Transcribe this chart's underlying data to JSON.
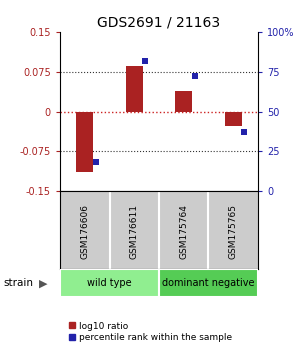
{
  "title": "GDS2691 / 21163",
  "samples": [
    "GSM176606",
    "GSM176611",
    "GSM175764",
    "GSM175765"
  ],
  "log10_ratio": [
    -0.113,
    0.085,
    0.038,
    -0.027
  ],
  "percentile_rank": [
    18,
    82,
    72,
    37
  ],
  "groups": [
    {
      "name": "wild type",
      "indices": [
        0,
        1
      ],
      "color": "#90EE90"
    },
    {
      "name": "dominant negative",
      "indices": [
        2,
        3
      ],
      "color": "#55CC55"
    }
  ],
  "ylim": [
    -0.15,
    0.15
  ],
  "yticks_left": [
    -0.15,
    -0.075,
    0,
    0.075,
    0.15
  ],
  "yticks_right": [
    0,
    25,
    50,
    75,
    100
  ],
  "bar_color": "#AA2222",
  "dot_color": "#2222AA",
  "hline_color": "#CC2222",
  "dotted_color": "#333333",
  "bg_color": "#FFFFFF",
  "sample_bg": "#CCCCCC",
  "bar_width": 0.35,
  "group_label": "strain",
  "legend_ratio_label": "log10 ratio",
  "legend_rank_label": "percentile rank within the sample"
}
